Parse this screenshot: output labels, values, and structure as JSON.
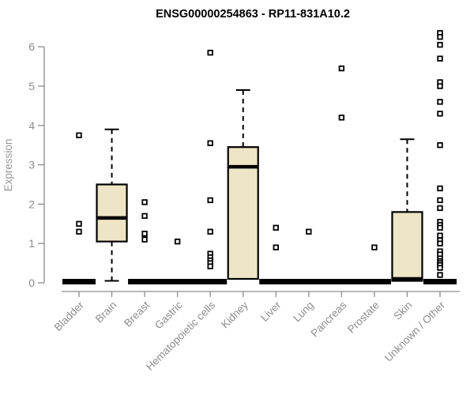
{
  "chart_data": {
    "type": "boxplot",
    "title": "ENSG00000254863 - RP11-831A10.2",
    "ylabel": "Expression",
    "xlabel": "",
    "ylim": [
      0,
      6.4
    ],
    "ytick_labels": [
      "0",
      "1",
      "2",
      "3",
      "4",
      "5",
      "6"
    ],
    "yticks": [
      0,
      1,
      2,
      3,
      4,
      5,
      6
    ],
    "grid": false,
    "legend": "none",
    "categories": [
      "Bladder",
      "Brain",
      "Breast",
      "Gastric",
      "Hematopoietic cells",
      "Kidney",
      "Liver",
      "Lung",
      "Pancreas",
      "Prostate",
      "Skin",
      "Unknown / Other"
    ],
    "boxes": [
      {
        "category": "Bladder",
        "collapsed": true,
        "q1": 0,
        "median": 0,
        "q3": 0,
        "lo": 0,
        "hi": 0,
        "outliers": [
          3.75,
          1.5,
          1.3
        ]
      },
      {
        "category": "Brain",
        "collapsed": false,
        "q1": 1.05,
        "median": 1.65,
        "q3": 2.5,
        "lo": 0.05,
        "hi": 3.9,
        "outliers": []
      },
      {
        "category": "Breast",
        "collapsed": true,
        "q1": 0,
        "median": 0,
        "q3": 0,
        "lo": 0,
        "hi": 0,
        "outliers": [
          2.05,
          1.7,
          1.25,
          1.1
        ]
      },
      {
        "category": "Gastric",
        "collapsed": true,
        "q1": 0,
        "median": 0,
        "q3": 0,
        "lo": 0,
        "hi": 0,
        "outliers": [
          1.05
        ]
      },
      {
        "category": "Hematopoietic cells",
        "collapsed": true,
        "q1": 0,
        "median": 0,
        "q3": 0,
        "lo": 0,
        "hi": 0,
        "outliers": [
          5.85,
          3.55,
          2.1,
          1.3,
          0.74,
          0.65,
          0.57,
          0.5,
          0.42
        ]
      },
      {
        "category": "Kidney",
        "collapsed": false,
        "q1": 0.1,
        "median": 2.95,
        "q3": 3.45,
        "lo": 0.1,
        "hi": 4.9,
        "outliers": []
      },
      {
        "category": "Liver",
        "collapsed": true,
        "q1": 0,
        "median": 0,
        "q3": 0,
        "lo": 0,
        "hi": 0,
        "outliers": [
          1.4,
          0.9
        ]
      },
      {
        "category": "Lung",
        "collapsed": true,
        "q1": 0,
        "median": 0,
        "q3": 0,
        "lo": 0,
        "hi": 0,
        "outliers": [
          1.3
        ]
      },
      {
        "category": "Pancreas",
        "collapsed": true,
        "q1": 0,
        "median": 0,
        "q3": 0,
        "lo": 0,
        "hi": 0,
        "outliers": [
          5.45,
          4.2
        ]
      },
      {
        "category": "Prostate",
        "collapsed": true,
        "q1": 0,
        "median": 0,
        "q3": 0,
        "lo": 0,
        "hi": 0,
        "outliers": [
          0.9
        ]
      },
      {
        "category": "Skin",
        "collapsed": false,
        "q1": 0.05,
        "median": 0.1,
        "q3": 1.8,
        "lo": 0.05,
        "hi": 3.65,
        "outliers": []
      },
      {
        "category": "Unknown / Other",
        "collapsed": true,
        "q1": 0,
        "median": 0,
        "q3": 0,
        "lo": 0,
        "hi": 0,
        "outliers": [
          6.35,
          6.25,
          6.05,
          5.7,
          5.1,
          5.0,
          4.6,
          4.3,
          3.5,
          2.4,
          2.1,
          1.9,
          1.55,
          1.47,
          1.4,
          1.2,
          1.08,
          1.0,
          0.8,
          0.72,
          0.62,
          0.55,
          0.5,
          0.45,
          0.38,
          0.2
        ]
      }
    ],
    "colors": {
      "box_fill": "#EDE5C6",
      "box_stroke": "#000000",
      "median": "#000000",
      "whisker": "#000000",
      "outlier_stroke": "#000000",
      "outlier_fill": "#ffffff",
      "axis": "#8c8c8c",
      "tick_label": "#8c8c8c",
      "title": "#000000"
    }
  }
}
